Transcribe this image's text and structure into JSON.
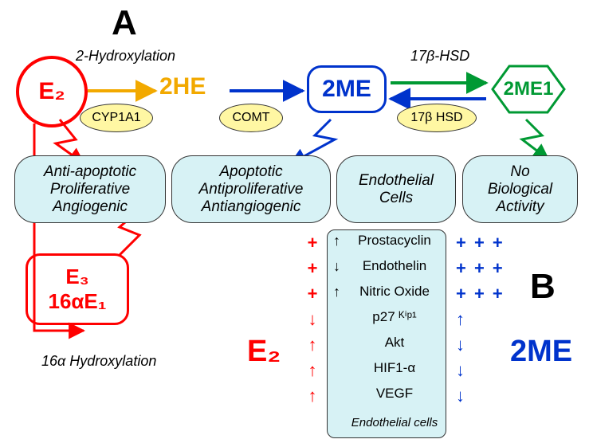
{
  "panel_labels": {
    "A": "A",
    "B": "B"
  },
  "nodes": {
    "E2": {
      "label": "E₂",
      "color": "#ff0000",
      "fontsize": 30
    },
    "2HE": {
      "label": "2HE",
      "color": "#f2a900",
      "fontsize": 30
    },
    "2ME": {
      "label": "2ME",
      "color": "#0033cc",
      "fontsize": 30
    },
    "2ME1": {
      "label": "2ME1",
      "color": "#009933",
      "fontsize": 24
    },
    "E3_16a": {
      "line1": "E₃",
      "line2": "16αE₁",
      "color": "#ff0000",
      "fontsize": 26
    }
  },
  "reaction_labels": {
    "hydroxylation2": "2-Hydroxylation",
    "hsd_top": "17β-HSD",
    "hydroxylation16a": "16α Hydroxylation"
  },
  "enzymes": {
    "cyp1a1": {
      "label": "CYP1A1",
      "bg": "#fff7a3",
      "border": "#333333"
    },
    "comt": {
      "label": "COMT",
      "bg": "#fff7a3",
      "border": "#333333"
    },
    "hsd": {
      "label": "17β HSD",
      "bg": "#fff7a3",
      "border": "#333333"
    }
  },
  "effects": {
    "e2_effects": {
      "lines": [
        "Anti-apoptotic",
        "Proliferative",
        "Angiogenic"
      ],
      "bg": "#d7f2f5",
      "border": "#333333"
    },
    "me_effects": {
      "lines": [
        "Apoptotic",
        "Antiproliferative",
        "Antiangiogenic"
      ],
      "bg": "#d7f2f5",
      "border": "#333333"
    },
    "endo_label": {
      "lines": [
        "Endothelial",
        "Cells"
      ],
      "bg": "#d7f2f5",
      "border": "#333333"
    },
    "me1_effects": {
      "lines": [
        "No",
        "Biological",
        "Activity"
      ],
      "bg": "#d7f2f5",
      "border": "#333333"
    }
  },
  "endothelial_list": {
    "items": [
      "Prostacyclin",
      "Endothelin",
      "Nitric Oxide",
      "p27 ᴷⁱᵖ¹",
      "Akt",
      "HIF1-α",
      "VEGF"
    ],
    "footer": "Endothelial cells",
    "bg": "#d7f2f5",
    "e2_marks": [
      "+",
      "+",
      "+",
      "↓",
      "↑",
      "↑",
      "↑"
    ],
    "me_marks": [
      "+ + +",
      "+ + +",
      "+ + +",
      "↑",
      "↓",
      "↓",
      "↓"
    ],
    "e2_color": "#ff0000",
    "me_color": "#0033cc",
    "black_arrow": [
      "↑",
      "↓",
      "↑",
      "",
      "",
      "",
      ""
    ]
  },
  "side_labels": {
    "E2_big": "E₂",
    "ME_big": "2ME"
  },
  "style": {
    "box_bg": "#d7f2f5",
    "box_border": "#333333",
    "panel_fontsize": 44,
    "panel_weight": "bold",
    "reaction_fontsize": 18,
    "reaction_style": "italic",
    "effect_fontsize": 19,
    "list_fontsize": 17,
    "sidelabel_fontsize": 38,
    "arrow_colors": {
      "orange": "#f2a900",
      "blue": "#0033cc",
      "green": "#009933",
      "red": "#ff0000"
    }
  }
}
